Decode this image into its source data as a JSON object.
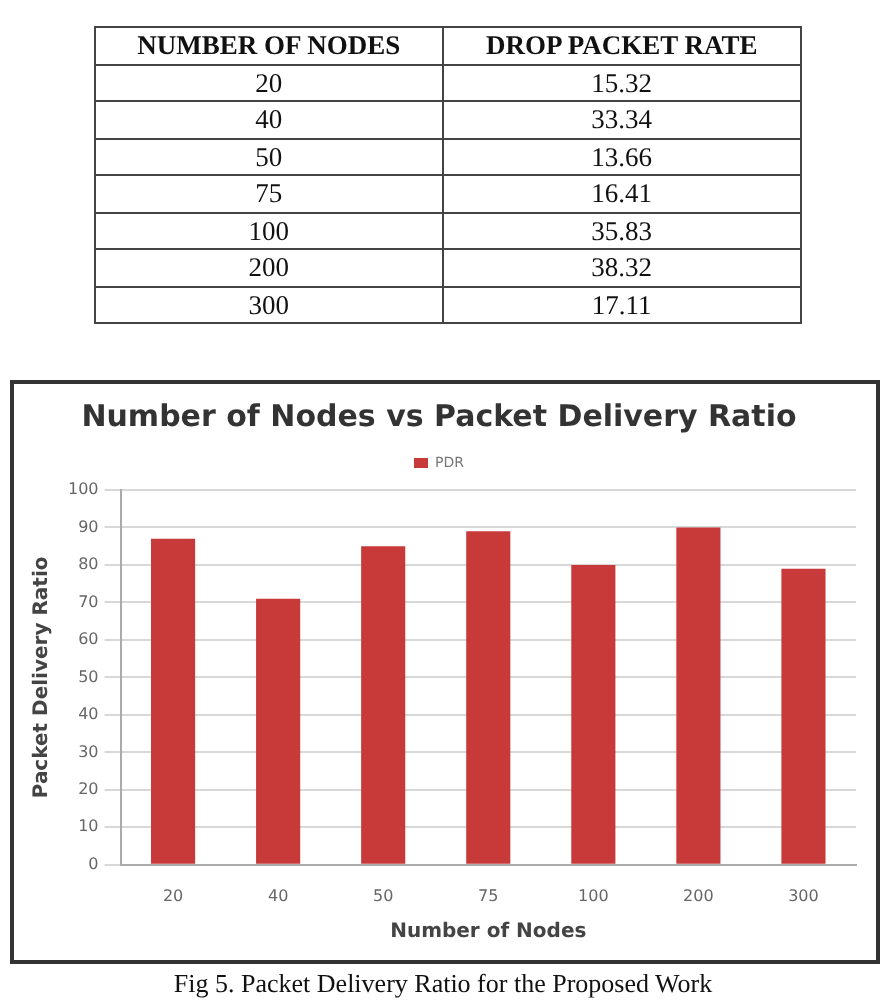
{
  "chart_data": [
    {
      "type": "other",
      "xlabel": "NUMBER OF NODES",
      "ylabel": "DROP PACKET RATE",
      "categories": [
        "20",
        "40",
        "50",
        "75",
        "100",
        "200",
        "300"
      ],
      "values": [
        15.32,
        33.34,
        13.66,
        16.41,
        35.83,
        38.32,
        17.11
      ],
      "data_labels": true
    },
    {
      "type": "bar",
      "title": "Number of Nodes vs Packet Delivery Ratio",
      "xlabel": "Number of Nodes",
      "ylabel": "Packet Delivery Ratio",
      "categories": [
        "20",
        "40",
        "50",
        "75",
        "100",
        "200",
        "300"
      ],
      "series": [
        {
          "name": "PDR",
          "color": "#c83a3a",
          "values": [
            87,
            71,
            85,
            89,
            80,
            90,
            79
          ]
        }
      ],
      "ylim": [
        0,
        100
      ],
      "yticks": [
        0,
        10,
        20,
        30,
        40,
        50,
        60,
        70,
        80,
        90,
        100
      ],
      "grid": "y",
      "legend": "top",
      "annotations": [
        "Fig 5. Packet Delivery Ratio for the Proposed Work"
      ]
    }
  ]
}
